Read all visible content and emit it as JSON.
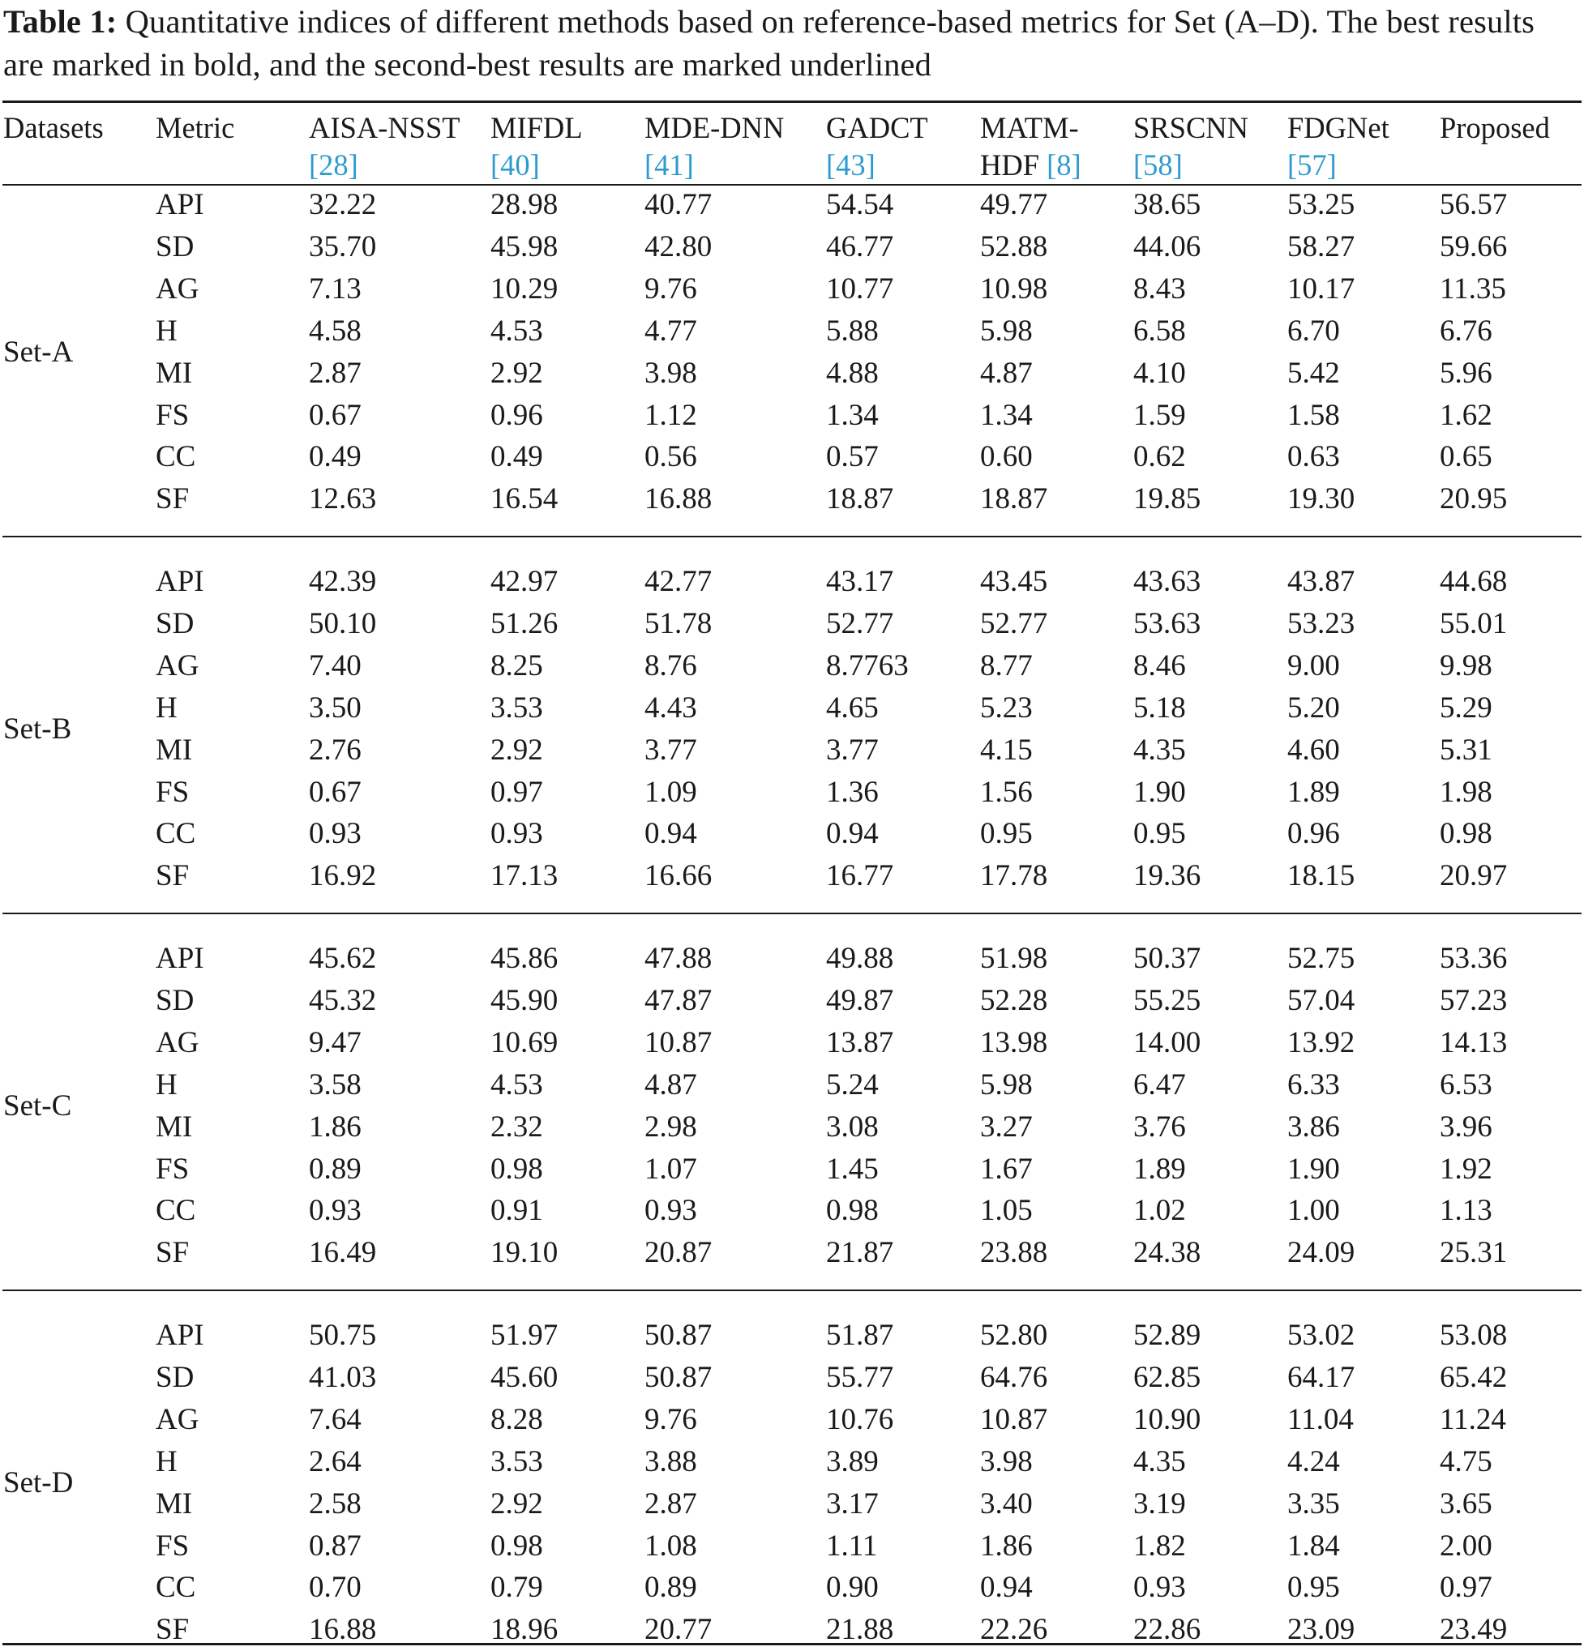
{
  "caption": {
    "label": "Table 1:",
    "text": "Quantitative indices of different methods based on reference-based metrics for Set (A–D). The best results are marked in bold, and the second-best results are marked underlined"
  },
  "header": {
    "datasets": "Datasets",
    "metric": "Metric",
    "methods": [
      {
        "line1": "AISA-NSST",
        "ref": "28"
      },
      {
        "line1": "MIFDL",
        "ref": "40"
      },
      {
        "line1": "MDE-DNN",
        "ref": "41"
      },
      {
        "line1": "GADCT",
        "ref": "43"
      },
      {
        "line1": "MATM-",
        "line2_text": "HDF",
        "ref": "8"
      },
      {
        "line1": "SRSCNN",
        "ref": "58"
      },
      {
        "line1": "FDGNet",
        "ref": "57"
      },
      {
        "line1": "Proposed"
      }
    ]
  },
  "sets": [
    {
      "name": "Set-A",
      "rows": [
        {
          "metric": "API",
          "values": [
            "32.22",
            "28.98",
            "40.77",
            "54.54",
            "49.77",
            "38.65",
            "53.25",
            "56.57"
          ]
        },
        {
          "metric": "SD",
          "values": [
            "35.70",
            "45.98",
            "42.80",
            "46.77",
            "52.88",
            "44.06",
            "58.27",
            "59.66"
          ]
        },
        {
          "metric": "AG",
          "values": [
            "7.13",
            "10.29",
            "9.76",
            "10.77",
            "10.98",
            "8.43",
            "10.17",
            "11.35"
          ]
        },
        {
          "metric": "H",
          "values": [
            "4.58",
            "4.53",
            "4.77",
            "5.88",
            "5.98",
            "6.58",
            "6.70",
            "6.76"
          ]
        },
        {
          "metric": "MI",
          "values": [
            "2.87",
            "2.92",
            "3.98",
            "4.88",
            "4.87",
            "4.10",
            "5.42",
            "5.96"
          ]
        },
        {
          "metric": "FS",
          "values": [
            "0.67",
            "0.96",
            "1.12",
            "1.34",
            "1.34",
            "1.59",
            "1.58",
            "1.62"
          ]
        },
        {
          "metric": "CC",
          "values": [
            "0.49",
            "0.49",
            "0.56",
            "0.57",
            "0.60",
            "0.62",
            "0.63",
            "0.65"
          ]
        },
        {
          "metric": "SF",
          "values": [
            "12.63",
            "16.54",
            "16.88",
            "18.87",
            "18.87",
            "19.85",
            "19.30",
            "20.95"
          ]
        }
      ]
    },
    {
      "name": "Set-B",
      "rows": [
        {
          "metric": "API",
          "values": [
            "42.39",
            "42.97",
            "42.77",
            "43.17",
            "43.45",
            "43.63",
            "43.87",
            "44.68"
          ]
        },
        {
          "metric": "SD",
          "values": [
            "50.10",
            "51.26",
            "51.78",
            "52.77",
            "52.77",
            "53.63",
            "53.23",
            "55.01"
          ]
        },
        {
          "metric": "AG",
          "values": [
            "7.40",
            "8.25",
            "8.76",
            "8.7763",
            "8.77",
            "8.46",
            "9.00",
            "9.98"
          ]
        },
        {
          "metric": "H",
          "values": [
            "3.50",
            "3.53",
            "4.43",
            "4.65",
            "5.23",
            "5.18",
            "5.20",
            "5.29"
          ]
        },
        {
          "metric": "MI",
          "values": [
            "2.76",
            "2.92",
            "3.77",
            "3.77",
            "4.15",
            "4.35",
            "4.60",
            "5.31"
          ]
        },
        {
          "metric": "FS",
          "values": [
            "0.67",
            "0.97",
            "1.09",
            "1.36",
            "1.56",
            "1.90",
            "1.89",
            "1.98"
          ]
        },
        {
          "metric": "CC",
          "values": [
            "0.93",
            "0.93",
            "0.94",
            "0.94",
            "0.95",
            "0.95",
            "0.96",
            "0.98"
          ]
        },
        {
          "metric": "SF",
          "values": [
            "16.92",
            "17.13",
            "16.66",
            "16.77",
            "17.78",
            "19.36",
            "18.15",
            "20.97"
          ]
        }
      ]
    },
    {
      "name": "Set-C",
      "rows": [
        {
          "metric": "API",
          "values": [
            "45.62",
            "45.86",
            "47.88",
            "49.88",
            "51.98",
            "50.37",
            "52.75",
            "53.36"
          ]
        },
        {
          "metric": "SD",
          "values": [
            "45.32",
            "45.90",
            "47.87",
            "49.87",
            "52.28",
            "55.25",
            "57.04",
            "57.23"
          ]
        },
        {
          "metric": "AG",
          "values": [
            "9.47",
            "10.69",
            "10.87",
            "13.87",
            "13.98",
            "14.00",
            "13.92",
            "14.13"
          ]
        },
        {
          "metric": "H",
          "values": [
            "3.58",
            "4.53",
            "4.87",
            "5.24",
            "5.98",
            "6.47",
            "6.33",
            "6.53"
          ]
        },
        {
          "metric": "MI",
          "values": [
            "1.86",
            "2.32",
            "2.98",
            "3.08",
            "3.27",
            "3.76",
            "3.86",
            "3.96"
          ]
        },
        {
          "metric": "FS",
          "values": [
            "0.89",
            "0.98",
            "1.07",
            "1.45",
            "1.67",
            "1.89",
            "1.90",
            "1.92"
          ]
        },
        {
          "metric": "CC",
          "values": [
            "0.93",
            "0.91",
            "0.93",
            "0.98",
            "1.05",
            "1.02",
            "1.00",
            "1.13"
          ]
        },
        {
          "metric": "SF",
          "values": [
            "16.49",
            "19.10",
            "20.87",
            "21.87",
            "23.88",
            "24.38",
            "24.09",
            "25.31"
          ]
        }
      ]
    },
    {
      "name": "Set-D",
      "rows": [
        {
          "metric": "API",
          "values": [
            "50.75",
            "51.97",
            "50.87",
            "51.87",
            "52.80",
            "52.89",
            "53.02",
            "53.08"
          ]
        },
        {
          "metric": "SD",
          "values": [
            "41.03",
            "45.60",
            "50.87",
            "55.77",
            "64.76",
            "62.85",
            "64.17",
            "65.42"
          ]
        },
        {
          "metric": "AG",
          "values": [
            "7.64",
            "8.28",
            "9.76",
            "10.76",
            "10.87",
            "10.90",
            "11.04",
            "11.24"
          ]
        },
        {
          "metric": "H",
          "values": [
            "2.64",
            "3.53",
            "3.88",
            "3.89",
            "3.98",
            "4.35",
            "4.24",
            "4.75"
          ]
        },
        {
          "metric": "MI",
          "values": [
            "2.58",
            "2.92",
            "2.87",
            "3.17",
            "3.40",
            "3.19",
            "3.35",
            "3.65"
          ]
        },
        {
          "metric": "FS",
          "values": [
            "0.87",
            "0.98",
            "1.08",
            "1.11",
            "1.86",
            "1.82",
            "1.84",
            "2.00"
          ]
        },
        {
          "metric": "CC",
          "values": [
            "0.70",
            "0.79",
            "0.89",
            "0.90",
            "0.94",
            "0.93",
            "0.95",
            "0.97"
          ]
        },
        {
          "metric": "SF",
          "values": [
            "16.88",
            "18.96",
            "20.77",
            "21.88",
            "22.26",
            "22.86",
            "23.09",
            "23.49"
          ]
        }
      ]
    }
  ]
}
